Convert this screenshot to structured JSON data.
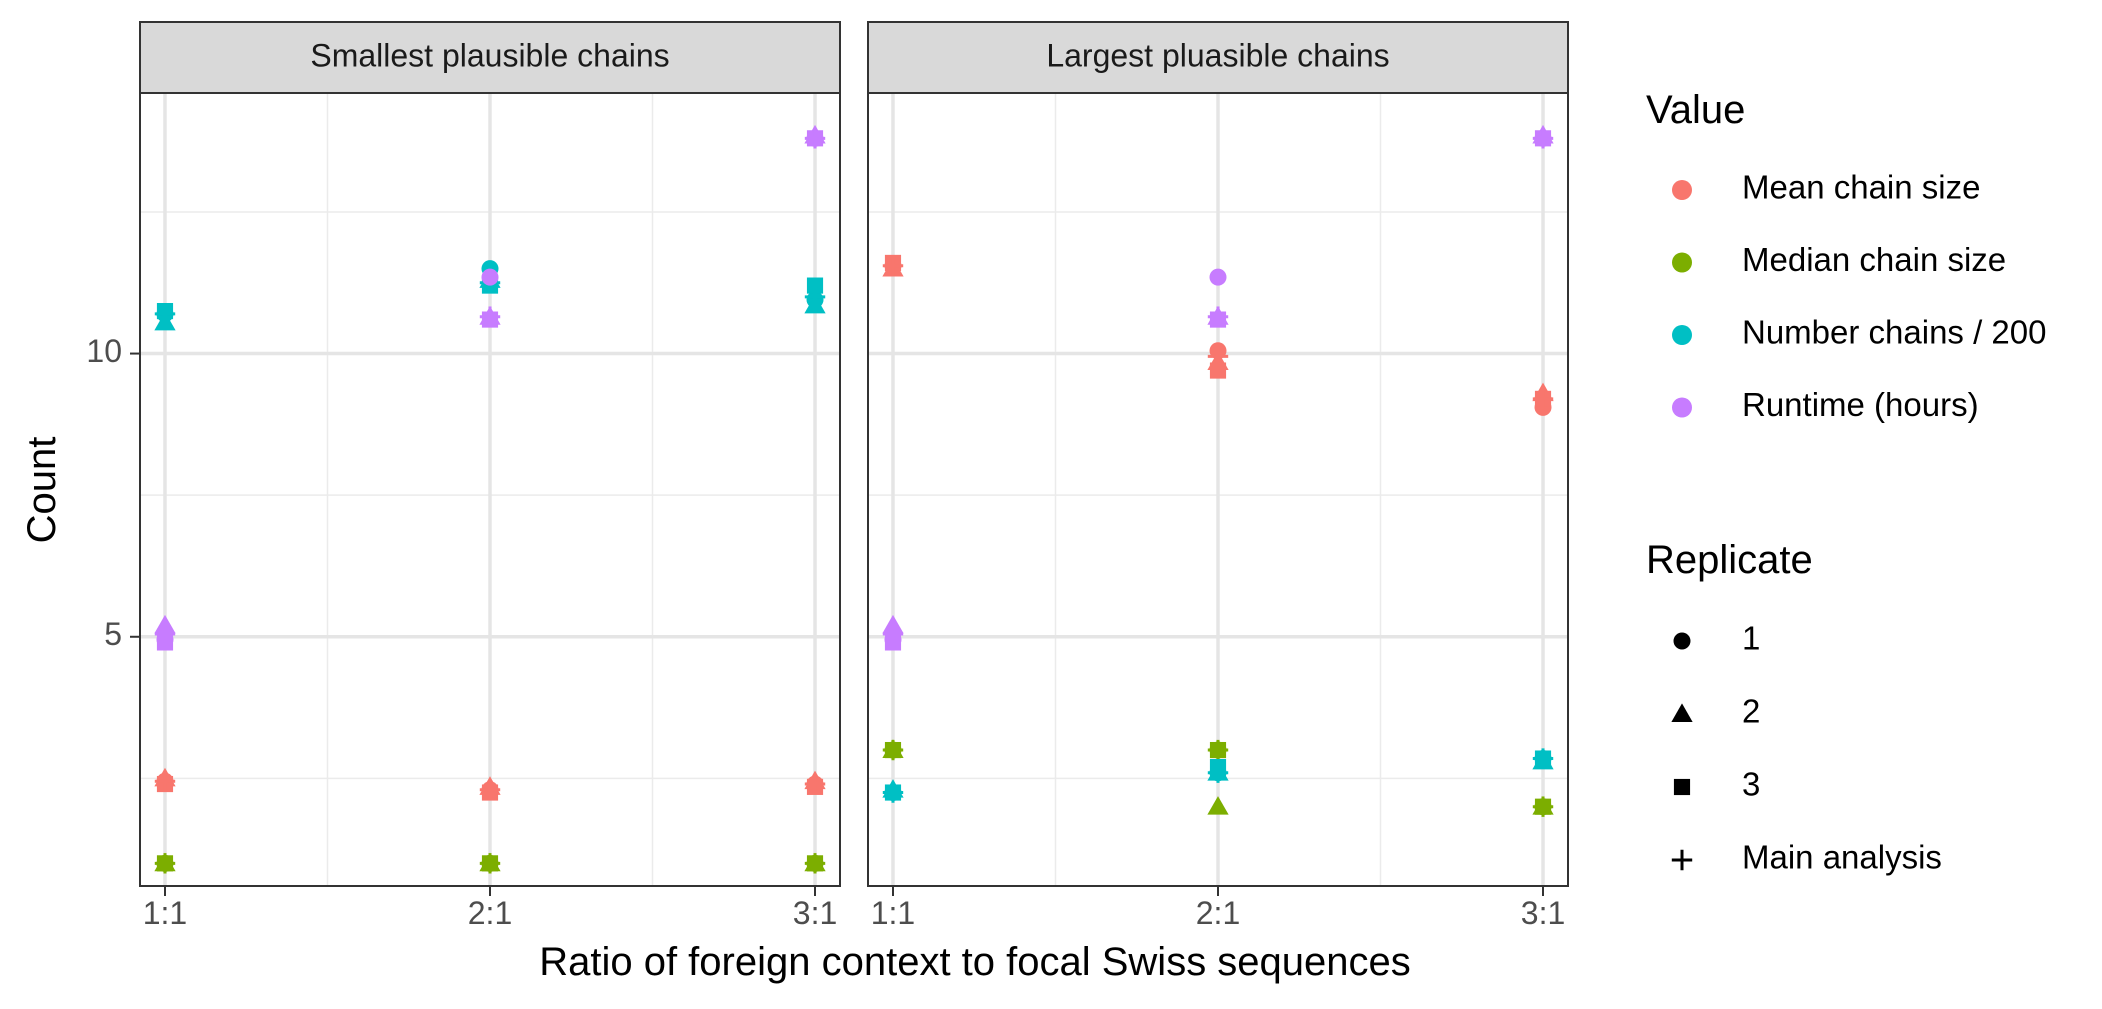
{
  "chart_data": {
    "type": "scatter",
    "xlabel": "Ratio of foreign context to focal Swiss sequences",
    "ylabel": "Count",
    "categories": [
      "1:1",
      "2:1",
      "3:1"
    ],
    "yticks": [
      5,
      10
    ],
    "ylim": [
      0.6,
      14.6
    ],
    "grid": true,
    "legend_placement": "right",
    "value_legend": {
      "title": "Value",
      "entries": [
        {
          "name": "Mean chain size",
          "color": "#F8766D"
        },
        {
          "name": "Median chain size",
          "color": "#7CAE00"
        },
        {
          "name": "Number chains / 200",
          "color": "#00BFC4"
        },
        {
          "name": "Runtime (hours)",
          "color": "#C77CFF"
        }
      ]
    },
    "replicate_legend": {
      "title": "Replicate",
      "entries": [
        {
          "name": "1",
          "shape": "circle"
        },
        {
          "name": "2",
          "shape": "triangle"
        },
        {
          "name": "3",
          "shape": "square"
        },
        {
          "name": "Main analysis",
          "shape": "plus"
        }
      ]
    },
    "panels": [
      {
        "title": "Smallest plausible chains",
        "series": [
          {
            "value": "Mean chain size",
            "points": [
              {
                "x": "1:1",
                "rep": "1",
                "y": 2.45
              },
              {
                "x": "1:1",
                "rep": "2",
                "y": 2.5
              },
              {
                "x": "1:1",
                "rep": "3",
                "y": 2.4
              },
              {
                "x": "1:1",
                "rep": "Main analysis",
                "y": 2.45
              },
              {
                "x": "2:1",
                "rep": "1",
                "y": 2.3
              },
              {
                "x": "2:1",
                "rep": "2",
                "y": 2.35
              },
              {
                "x": "2:1",
                "rep": "3",
                "y": 2.25
              },
              {
                "x": "2:1",
                "rep": "Main analysis",
                "y": 2.3
              },
              {
                "x": "3:1",
                "rep": "1",
                "y": 2.4
              },
              {
                "x": "3:1",
                "rep": "2",
                "y": 2.45
              },
              {
                "x": "3:1",
                "rep": "3",
                "y": 2.35
              },
              {
                "x": "3:1",
                "rep": "Main analysis",
                "y": 2.4
              }
            ]
          },
          {
            "value": "Median chain size",
            "points": [
              {
                "x": "1:1",
                "rep": "1",
                "y": 1.0
              },
              {
                "x": "1:1",
                "rep": "2",
                "y": 1.0
              },
              {
                "x": "1:1",
                "rep": "3",
                "y": 1.0
              },
              {
                "x": "1:1",
                "rep": "Main analysis",
                "y": 1.0
              },
              {
                "x": "2:1",
                "rep": "1",
                "y": 1.0
              },
              {
                "x": "2:1",
                "rep": "2",
                "y": 1.0
              },
              {
                "x": "2:1",
                "rep": "3",
                "y": 1.0
              },
              {
                "x": "2:1",
                "rep": "Main analysis",
                "y": 1.0
              },
              {
                "x": "3:1",
                "rep": "1",
                "y": 1.0
              },
              {
                "x": "3:1",
                "rep": "2",
                "y": 1.0
              },
              {
                "x": "3:1",
                "rep": "3",
                "y": 1.0
              },
              {
                "x": "3:1",
                "rep": "Main analysis",
                "y": 1.0
              }
            ]
          },
          {
            "value": "Number chains / 200",
            "points": [
              {
                "x": "1:1",
                "rep": "1",
                "y": 10.7
              },
              {
                "x": "1:1",
                "rep": "2",
                "y": 10.55
              },
              {
                "x": "1:1",
                "rep": "3",
                "y": 10.75
              },
              {
                "x": "1:1",
                "rep": "Main analysis",
                "y": 10.7
              },
              {
                "x": "2:1",
                "rep": "1",
                "y": 11.5
              },
              {
                "x": "2:1",
                "rep": "2",
                "y": 11.3
              },
              {
                "x": "2:1",
                "rep": "3",
                "y": 11.2
              },
              {
                "x": "2:1",
                "rep": "Main analysis",
                "y": 11.25
              },
              {
                "x": "3:1",
                "rep": "1",
                "y": 10.95
              },
              {
                "x": "3:1",
                "rep": "2",
                "y": 10.85
              },
              {
                "x": "3:1",
                "rep": "3",
                "y": 11.2
              },
              {
                "x": "3:1",
                "rep": "Main analysis",
                "y": 11.0
              }
            ]
          },
          {
            "value": "Runtime (hours)",
            "points": [
              {
                "x": "1:1",
                "rep": "1",
                "y": 4.95
              },
              {
                "x": "1:1",
                "rep": "2",
                "y": 5.2
              },
              {
                "x": "1:1",
                "rep": "3",
                "y": 4.9
              },
              {
                "x": "1:1",
                "rep": "Main analysis",
                "y": 5.05
              },
              {
                "x": "2:1",
                "rep": "1",
                "y": 11.35
              },
              {
                "x": "2:1",
                "rep": "2",
                "y": 10.65
              },
              {
                "x": "2:1",
                "rep": "3",
                "y": 10.6
              },
              {
                "x": "2:1",
                "rep": "Main analysis",
                "y": 10.65
              },
              {
                "x": "3:1",
                "rep": "1",
                "y": 13.8
              },
              {
                "x": "3:1",
                "rep": "2",
                "y": 13.85
              },
              {
                "x": "3:1",
                "rep": "3",
                "y": 13.8
              },
              {
                "x": "3:1",
                "rep": "Main analysis",
                "y": 13.8
              }
            ]
          }
        ]
      },
      {
        "title": "Largest pluasible chains",
        "series": [
          {
            "value": "Mean chain size",
            "points": [
              {
                "x": "1:1",
                "rep": "1",
                "y": 11.55
              },
              {
                "x": "1:1",
                "rep": "2",
                "y": 11.5
              },
              {
                "x": "1:1",
                "rep": "3",
                "y": 11.6
              },
              {
                "x": "1:1",
                "rep": "Main analysis",
                "y": 11.55
              },
              {
                "x": "2:1",
                "rep": "1",
                "y": 10.05
              },
              {
                "x": "2:1",
                "rep": "2",
                "y": 9.85
              },
              {
                "x": "2:1",
                "rep": "3",
                "y": 9.7
              },
              {
                "x": "2:1",
                "rep": "Main analysis",
                "y": 9.95
              },
              {
                "x": "3:1",
                "rep": "1",
                "y": 9.05
              },
              {
                "x": "3:1",
                "rep": "2",
                "y": 9.3
              },
              {
                "x": "3:1",
                "rep": "3",
                "y": 9.2
              },
              {
                "x": "3:1",
                "rep": "Main analysis",
                "y": 9.2
              }
            ]
          },
          {
            "value": "Median chain size",
            "points": [
              {
                "x": "1:1",
                "rep": "1",
                "y": 3.0
              },
              {
                "x": "1:1",
                "rep": "2",
                "y": 3.0
              },
              {
                "x": "1:1",
                "rep": "3",
                "y": 3.0
              },
              {
                "x": "1:1",
                "rep": "Main analysis",
                "y": 3.0
              },
              {
                "x": "2:1",
                "rep": "1",
                "y": 3.0
              },
              {
                "x": "2:1",
                "rep": "2",
                "y": 2.0
              },
              {
                "x": "2:1",
                "rep": "3",
                "y": 3.0
              },
              {
                "x": "2:1",
                "rep": "Main analysis",
                "y": 3.0
              },
              {
                "x": "3:1",
                "rep": "1",
                "y": 2.0
              },
              {
                "x": "3:1",
                "rep": "2",
                "y": 2.0
              },
              {
                "x": "3:1",
                "rep": "3",
                "y": 2.0
              },
              {
                "x": "3:1",
                "rep": "Main analysis",
                "y": 2.0
              }
            ]
          },
          {
            "value": "Number chains / 200",
            "points": [
              {
                "x": "1:1",
                "rep": "1",
                "y": 2.25
              },
              {
                "x": "1:1",
                "rep": "2",
                "y": 2.3
              },
              {
                "x": "1:1",
                "rep": "3",
                "y": 2.25
              },
              {
                "x": "1:1",
                "rep": "Main analysis",
                "y": 2.25
              },
              {
                "x": "2:1",
                "rep": "1",
                "y": 2.6
              },
              {
                "x": "2:1",
                "rep": "2",
                "y": 2.6
              },
              {
                "x": "2:1",
                "rep": "3",
                "y": 2.7
              },
              {
                "x": "2:1",
                "rep": "Main analysis",
                "y": 2.6
              },
              {
                "x": "3:1",
                "rep": "1",
                "y": 2.85
              },
              {
                "x": "3:1",
                "rep": "2",
                "y": 2.8
              },
              {
                "x": "3:1",
                "rep": "3",
                "y": 2.85
              },
              {
                "x": "3:1",
                "rep": "Main analysis",
                "y": 2.85
              }
            ]
          },
          {
            "value": "Runtime (hours)",
            "points": [
              {
                "x": "1:1",
                "rep": "1",
                "y": 4.95
              },
              {
                "x": "1:1",
                "rep": "2",
                "y": 5.2
              },
              {
                "x": "1:1",
                "rep": "3",
                "y": 4.9
              },
              {
                "x": "1:1",
                "rep": "Main analysis",
                "y": 5.05
              },
              {
                "x": "2:1",
                "rep": "1",
                "y": 11.35
              },
              {
                "x": "2:1",
                "rep": "2",
                "y": 10.65
              },
              {
                "x": "2:1",
                "rep": "3",
                "y": 10.6
              },
              {
                "x": "2:1",
                "rep": "Main analysis",
                "y": 10.65
              },
              {
                "x": "3:1",
                "rep": "1",
                "y": 13.8
              },
              {
                "x": "3:1",
                "rep": "2",
                "y": 13.85
              },
              {
                "x": "3:1",
                "rep": "3",
                "y": 13.8
              },
              {
                "x": "3:1",
                "rep": "Main analysis",
                "y": 13.8
              }
            ]
          }
        ]
      }
    ]
  }
}
